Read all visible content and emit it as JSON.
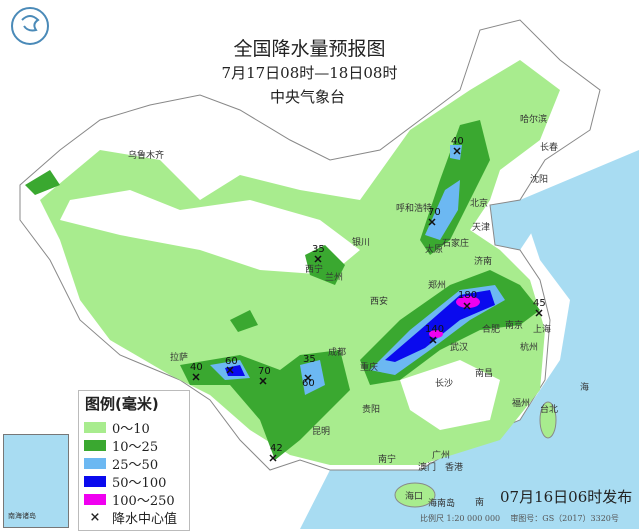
{
  "header": {
    "title": "全国降水量预报图",
    "period": "7月17日08时—18日08时",
    "agency": "中央气象台"
  },
  "legend": {
    "title": "图例(毫米)",
    "items": [
      {
        "label": "0～10",
        "color": "#a8ec8e"
      },
      {
        "label": "10～25",
        "color": "#3aa830"
      },
      {
        "label": "25～50",
        "color": "#6cb8f2"
      },
      {
        "label": "50～100",
        "color": "#0a0aee"
      },
      {
        "label": "100～250",
        "color": "#f000f0"
      }
    ],
    "center_label": "降水中心值",
    "center_symbol": "×"
  },
  "footer": {
    "issued": "07月16日06时发布",
    "scale": "比例尺 1:20 000 000",
    "map_no": "审图号：GS（2017）3320号"
  },
  "inset": {
    "label": "南海诸岛"
  },
  "sea_labels": [
    "海",
    "南"
  ],
  "cities": [
    "乌鲁木齐",
    "哈尔滨",
    "长春",
    "沈阳",
    "北京",
    "天津",
    "呼和浩特",
    "石家庄",
    "太原",
    "银川",
    "西宁",
    "兰州",
    "西安",
    "郑州",
    "济南",
    "合肥",
    "南京",
    "上海",
    "杭州",
    "武汉",
    "长沙",
    "南昌",
    "福州",
    "台北",
    "成都",
    "重庆",
    "贵阳",
    "昆明",
    "拉萨",
    "南宁",
    "广州",
    "香港",
    "澳门",
    "海口",
    "海南岛"
  ],
  "centers": [
    "40",
    "70",
    "180",
    "140",
    "45",
    "35",
    "40",
    "60",
    "70",
    "35",
    "60",
    "42"
  ],
  "colors": {
    "sea": "#a8dcf2",
    "land": "#ffffff",
    "border": "#888888"
  }
}
